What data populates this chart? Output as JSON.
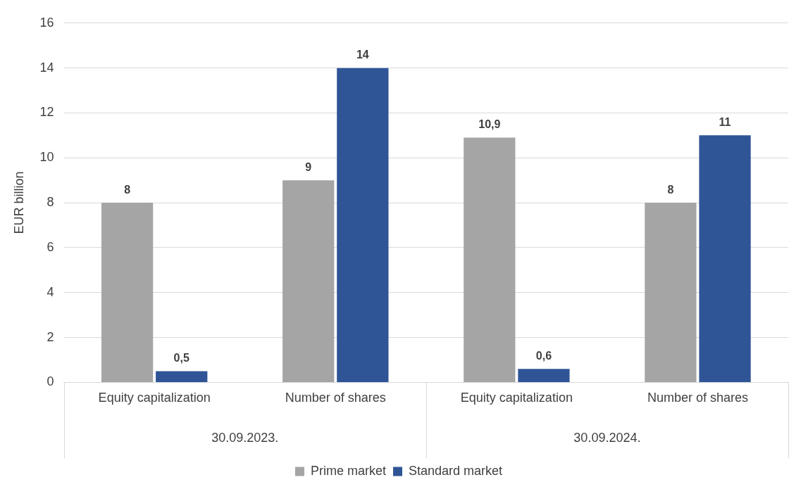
{
  "chart_data": {
    "type": "bar",
    "ylabel": "EUR billion",
    "categories": [
      "Equity capitalization",
      "Number of shares",
      "Equity capitalization",
      "Number of shares"
    ],
    "annotations": [
      "30.09.2023.",
      "30.09.2024."
    ],
    "series": [
      {
        "name": "Prime market",
        "color": "#a5a5a5",
        "values": [
          8,
          9,
          10.9,
          8
        ],
        "value_labels": [
          "8",
          "9",
          "10,9",
          "8"
        ]
      },
      {
        "name": "Standard market",
        "color": "#2f5597",
        "values": [
          0.5,
          14,
          0.6,
          11
        ],
        "value_labels": [
          "0,5",
          "14",
          "0,6",
          "11"
        ]
      }
    ],
    "ylim": [
      0,
      16
    ],
    "yticks": [
      0,
      2,
      4,
      6,
      8,
      10,
      12,
      14,
      16
    ],
    "grid": "y",
    "legend": "bottom"
  }
}
